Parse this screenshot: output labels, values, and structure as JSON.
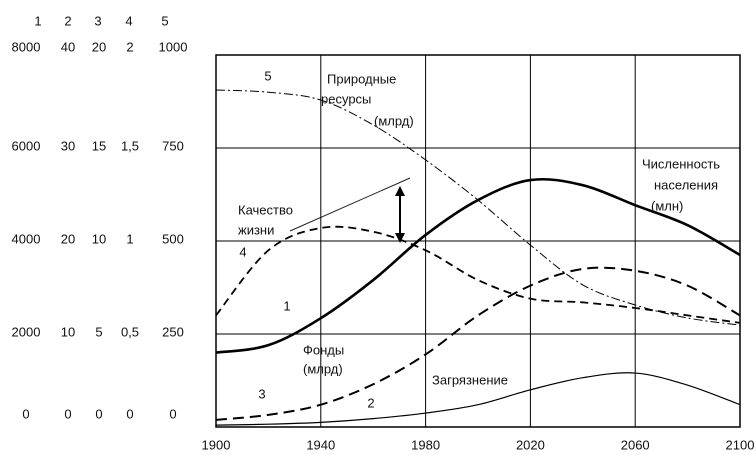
{
  "chart_data": {
    "type": "line",
    "x": [
      1900,
      1920,
      1940,
      1960,
      1980,
      2000,
      2020,
      2040,
      2060,
      2080,
      2100
    ],
    "xlim": [
      1900,
      2100
    ],
    "xticks": [
      1900,
      1940,
      1980,
      2020,
      2060,
      2100
    ],
    "grid": true,
    "color": "#000000",
    "axes": [
      {
        "name": "1",
        "ylim": [
          0,
          8000
        ],
        "yticks": [
          0,
          2000,
          4000,
          6000,
          8000
        ]
      },
      {
        "name": "2",
        "ylim": [
          0,
          40
        ],
        "yticks": [
          0,
          10,
          20,
          30,
          40
        ]
      },
      {
        "name": "3",
        "ylim": [
          0,
          20
        ],
        "yticks": [
          0,
          5,
          10,
          15,
          20
        ]
      },
      {
        "name": "4",
        "ylim": [
          0,
          2
        ],
        "yticks": [
          0,
          {
            "value": 0.5,
            "label": "0,5"
          },
          1,
          {
            "value": 1.5,
            "label": "1,5"
          },
          2
        ]
      },
      {
        "name": "5",
        "ylim": [
          0,
          1000
        ],
        "yticks": [
          0,
          250,
          500,
          750,
          1000
        ]
      }
    ],
    "series": [
      {
        "name": "1",
        "axis": 0,
        "style": "solid-thick",
        "values": [
          1600,
          1760,
          2340,
          3160,
          4130,
          4880,
          5310,
          5200,
          4770,
          4340,
          3700
        ]
      },
      {
        "name": "2",
        "axis": 1,
        "style": "solid-thin",
        "values": [
          0.2,
          0.3,
          0.5,
          0.9,
          1.5,
          2.4,
          4,
          5.3,
          5.8,
          4.5,
          2.4
        ]
      },
      {
        "name": "3",
        "axis": 2,
        "style": "dashed",
        "values": [
          0.38,
          0.65,
          1.2,
          2.3,
          3.9,
          6.0,
          7.6,
          8.5,
          8.4,
          7.6,
          6.0
        ]
      },
      {
        "name": "4",
        "axis": 3,
        "style": "dashed-short",
        "values": [
          0.6,
          0.95,
          1.07,
          1.05,
          0.95,
          0.79,
          0.69,
          0.67,
          0.64,
          0.6,
          0.56
        ]
      },
      {
        "name": "5",
        "axis": 4,
        "style": "dash-dot",
        "values": [
          906,
          900,
          879,
          812,
          718,
          610,
          489,
          382,
          328,
          293,
          274
        ]
      }
    ],
    "annotations": [
      "Природные",
      "ресурсы",
      "(млрд)",
      "Численность",
      "населения",
      "(млн)",
      "Качество",
      "жизни",
      "Фонды",
      "(млрд)",
      "Загрязнение"
    ]
  }
}
